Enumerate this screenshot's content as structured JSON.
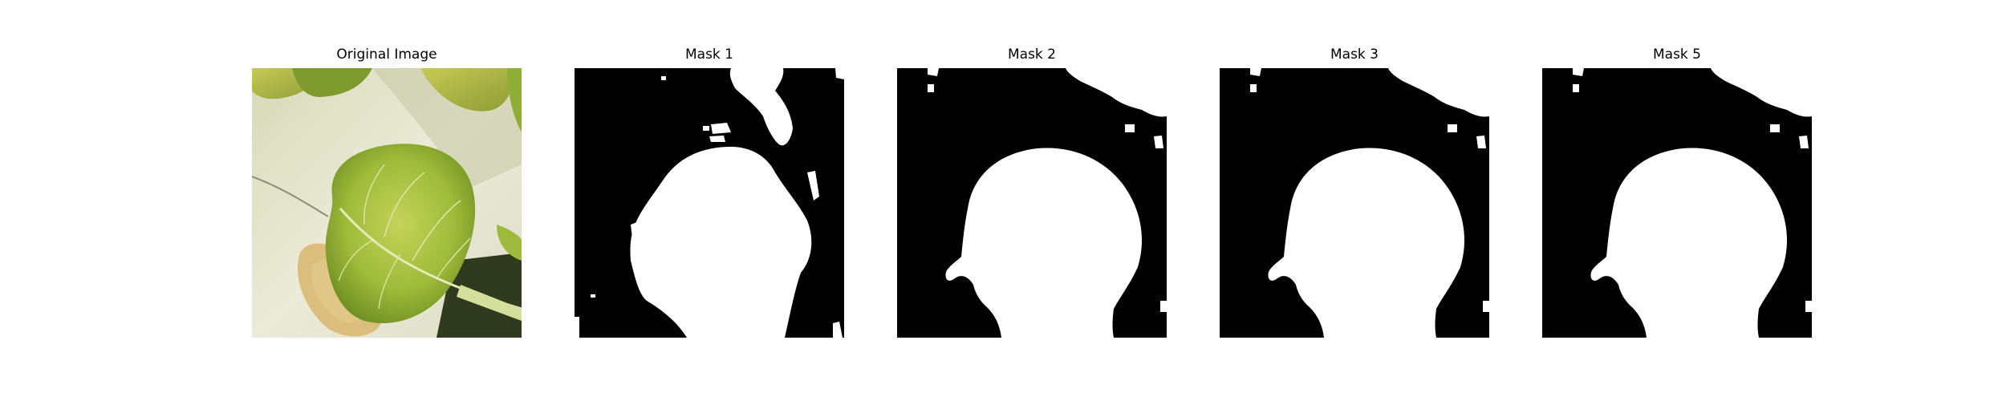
{
  "panels": [
    {
      "title": "Original Image",
      "kind": "photo"
    },
    {
      "title": "Mask 1",
      "kind": "mask"
    },
    {
      "title": "Mask 2",
      "kind": "mask"
    },
    {
      "title": "Mask 3",
      "kind": "mask"
    },
    {
      "title": "Mask 5",
      "kind": "mask"
    }
  ],
  "colors": {
    "background": "#ffffff",
    "mask_background": "#000000",
    "mask_foreground": "#ffffff",
    "leaf_green": "#9bb83a",
    "leaf_light": "#c9d86a",
    "leaf_vein": "#e4eab8",
    "wall": "#e6e6d2",
    "shadow": "#c7c9ae",
    "dried_leaf": "#d9b874"
  }
}
